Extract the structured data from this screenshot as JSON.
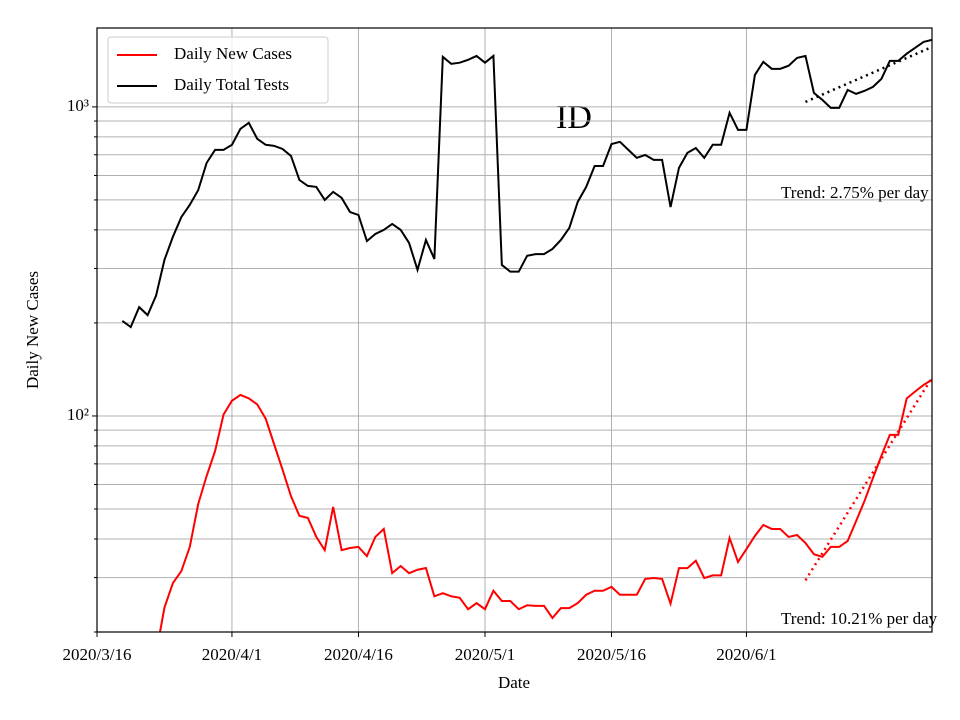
{
  "chart_data": {
    "type": "line",
    "title": "ID",
    "xlabel": "Date",
    "ylabel": "Daily New Cases",
    "x": [
      "2020/3/19",
      "2020/3/20",
      "2020/3/21",
      "2020/3/22",
      "2020/3/23",
      "2020/3/24",
      "2020/3/25",
      "2020/3/26",
      "2020/3/27",
      "2020/3/28",
      "2020/3/29",
      "2020/3/30",
      "2020/3/31",
      "2020/4/1",
      "2020/4/2",
      "2020/4/3",
      "2020/4/4",
      "2020/4/5",
      "2020/4/6",
      "2020/4/7",
      "2020/4/8",
      "2020/4/9",
      "2020/4/10",
      "2020/4/11",
      "2020/4/12",
      "2020/4/13",
      "2020/4/14",
      "2020/4/15",
      "2020/4/16",
      "2020/4/17",
      "2020/4/18",
      "2020/4/19",
      "2020/4/20",
      "2020/4/21",
      "2020/4/22",
      "2020/4/23",
      "2020/4/24",
      "2020/4/25",
      "2020/4/26",
      "2020/4/27",
      "2020/4/28",
      "2020/4/29",
      "2020/4/30",
      "2020/5/1",
      "2020/5/2",
      "2020/5/3",
      "2020/5/4",
      "2020/5/5",
      "2020/5/6",
      "2020/5/7",
      "2020/5/8",
      "2020/5/9",
      "2020/5/10",
      "2020/5/11",
      "2020/5/12",
      "2020/5/13",
      "2020/5/14",
      "2020/5/15",
      "2020/5/16",
      "2020/5/17",
      "2020/5/18",
      "2020/5/19",
      "2020/5/20",
      "2020/5/21",
      "2020/5/22",
      "2020/5/23",
      "2020/5/24",
      "2020/5/25",
      "2020/5/26",
      "2020/5/27",
      "2020/5/28",
      "2020/5/29",
      "2020/5/30",
      "2020/5/31",
      "2020/6/1",
      "2020/6/2",
      "2020/6/3",
      "2020/6/4",
      "2020/6/5",
      "2020/6/6",
      "2020/6/7",
      "2020/6/8",
      "2020/6/9",
      "2020/6/10",
      "2020/6/11",
      "2020/6/12",
      "2020/6/13",
      "2020/6/14",
      "2020/6/15",
      "2020/6/16",
      "2020/6/17",
      "2020/6/18",
      "2020/6/19",
      "2020/6/20",
      "2020/6/21",
      "2020/6/22",
      "2020/6/23"
    ],
    "series": [
      {
        "name": "Daily New Cases",
        "color": "#ff0000",
        "values": [
          null,
          null,
          null,
          null,
          17,
          24,
          28.8,
          31.5,
          37.7,
          51.9,
          64,
          77,
          101,
          112,
          117,
          114,
          109,
          98,
          81,
          67,
          55,
          47.5,
          46.8,
          40.6,
          36.8,
          50.8,
          36.8,
          37.4,
          37.7,
          35.2,
          40.6,
          43.1,
          31,
          32.7,
          31,
          31.8,
          32.2,
          26.1,
          26.7,
          26.1,
          25.8,
          23.7,
          24.8,
          23.7,
          27.2,
          25.2,
          25.2,
          23.7,
          24.4,
          24.3,
          24.3,
          22.2,
          23.9,
          23.9,
          24.8,
          26.4,
          27.2,
          27.2,
          28,
          26.4,
          26.4,
          26.4,
          29.7,
          29.9,
          29.7,
          24.7,
          32.2,
          32.2,
          34,
          29.9,
          30.5,
          30.5,
          40.3,
          33.7,
          37.1,
          40.9,
          44.4,
          43.1,
          43.1,
          40.6,
          41.2,
          38.8,
          35.7,
          35,
          37.7,
          37.7,
          39.4,
          45.7,
          53.1,
          63,
          74.3,
          86.9,
          86.9,
          114,
          120,
          126,
          131
        ]
      },
      {
        "name": "Daily Total Tests",
        "color": "#000000",
        "values": [
          203,
          194,
          225,
          212,
          245,
          320,
          380,
          440,
          482,
          538,
          659,
          726,
          726,
          754,
          849,
          888,
          788,
          754,
          748,
          731,
          694,
          580,
          555,
          551,
          500,
          531,
          508,
          457,
          447,
          368,
          388,
          400,
          418,
          400,
          363,
          297,
          371,
          322,
          1452,
          1378,
          1390,
          1420,
          1462,
          1390,
          1462,
          308,
          293,
          293,
          330,
          334,
          334,
          347,
          371,
          406,
          493,
          551,
          644,
          644,
          758,
          771,
          726,
          684,
          699,
          674,
          674,
          474,
          635,
          710,
          736,
          684,
          754,
          754,
          957,
          843,
          843,
          1269,
          1399,
          1328,
          1328,
          1359,
          1441,
          1462,
          1110,
          1054,
          993,
          993,
          1135,
          1102,
          1127,
          1161,
          1232,
          1409,
          1409,
          1486,
          1553,
          1623,
          1648
        ]
      }
    ],
    "trends": [
      {
        "color": "#000000",
        "x": [
          "2020/6/8",
          "2020/6/23"
        ],
        "values": [
          1038,
          1563
        ],
        "label": "Trend: 2.75% per day"
      },
      {
        "color": "#ff0000",
        "x": [
          "2020/6/8",
          "2020/6/23"
        ],
        "values": [
          29.4,
          133
        ],
        "label": "Trend: 10.21% per day"
      }
    ],
    "xlim": [
      "2020/3/16",
      "2020/6/23"
    ],
    "xticks": [
      "2020/3/16",
      "2020/4/1",
      "2020/4/16",
      "2020/5/1",
      "2020/5/16",
      "2020/6/1"
    ],
    "ylim": [
      20,
      1800
    ],
    "log_y": true,
    "yticks": [
      {
        "value": 100,
        "label": "10²"
      },
      {
        "value": 1000,
        "label": "10³"
      }
    ],
    "yminorticks": [
      20,
      30,
      40,
      50,
      60,
      70,
      80,
      90,
      200,
      300,
      400,
      500,
      600,
      700,
      800,
      900
    ],
    "grid": true,
    "legend": "upper left"
  }
}
